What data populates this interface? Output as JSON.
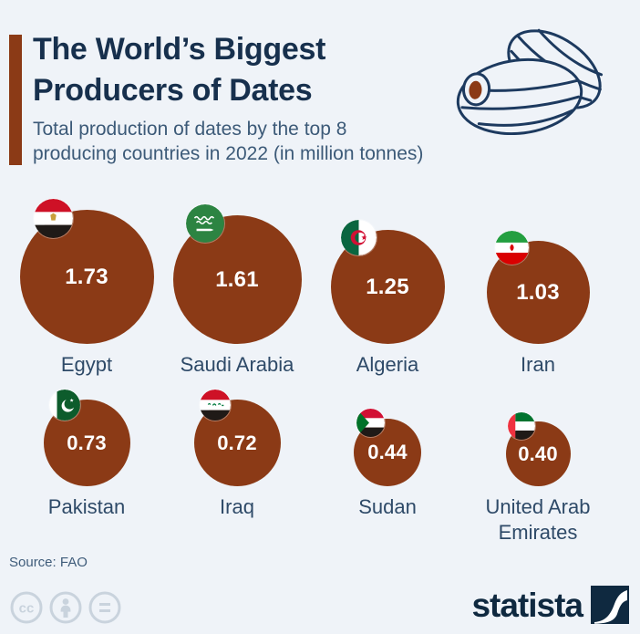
{
  "header": {
    "title_line1": "The World’s Biggest",
    "title_line2": "Producers of Dates",
    "subtitle_line1": "Total production of dates by the top 8",
    "subtitle_line2": "producing countries in 2022 (in million tonnes)"
  },
  "chart_data": {
    "type": "bubble",
    "title": "The World’s Biggest Producers of Dates",
    "subtitle": "Total production of dates by the top 8 producing countries in 2022 (in million tonnes)",
    "unit": "million tonnes",
    "year": "2022",
    "items": [
      {
        "country": "Egypt",
        "value": 1.73,
        "label": "1.73",
        "flag": "egypt"
      },
      {
        "country": "Saudi Arabia",
        "value": 1.61,
        "label": "1.61",
        "flag": "saudi-arabia"
      },
      {
        "country": "Algeria",
        "value": 1.25,
        "label": "1.25",
        "flag": "algeria"
      },
      {
        "country": "Iran",
        "value": 1.03,
        "label": "1.03",
        "flag": "iran"
      },
      {
        "country": "Pakistan",
        "value": 0.73,
        "label": "0.73",
        "flag": "pakistan"
      },
      {
        "country": "Iraq",
        "value": 0.72,
        "label": "0.72",
        "flag": "iraq"
      },
      {
        "country": "Sudan",
        "value": 0.44,
        "label": "0.44",
        "flag": "sudan"
      },
      {
        "country": "United Arab Emirates",
        "value": 0.4,
        "label": "0.40",
        "flag": "united-arab-emirates"
      }
    ]
  },
  "footer": {
    "source": "Source: FAO",
    "logo_text": "statista"
  },
  "colors": {
    "background": "#eff3f8",
    "bubble": "#8B3A16",
    "accent_bar": "#8B3A16",
    "title": "#17304d",
    "subtitle": "#3c5a78",
    "country_label": "#2e4a68",
    "value_text": "#ffffff",
    "source_text": "#3f5c7a",
    "cc_icon": "#c9d3dd",
    "logo": "#0f2940"
  }
}
